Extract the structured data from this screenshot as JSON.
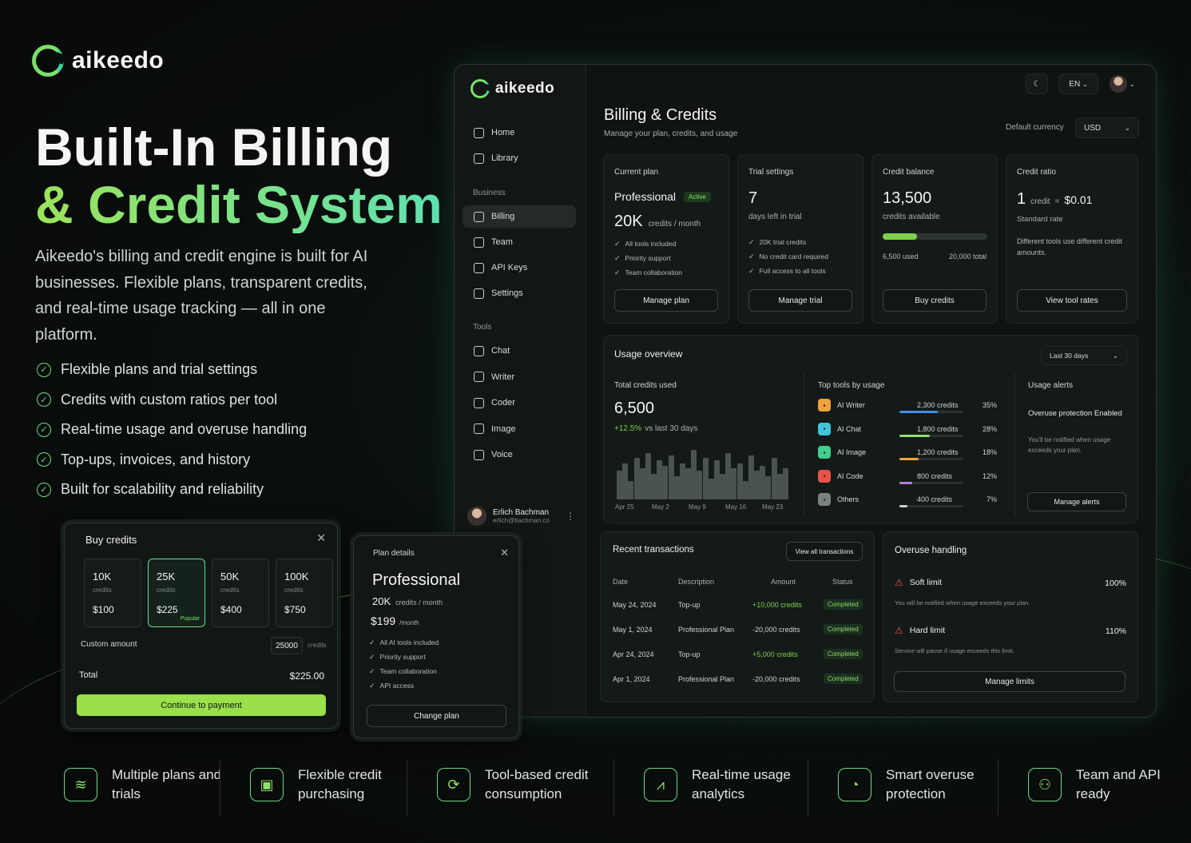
{
  "brand": {
    "name": "aikeedo"
  },
  "hero": {
    "title_line1": "Built-In Billing",
    "title_line2": "& Credit System",
    "description": "Aikeedo's billing and credit engine is built for AI businesses. Flexible plans, transparent credits, and real-time usage tracking — all in one platform.",
    "features": [
      "Flexible plans and trial settings",
      "Credits with custom ratios per tool",
      "Real-time usage and overuse handling",
      "Top-ups, invoices, and history",
      "Built for scalability and reliability"
    ]
  },
  "sidebar": {
    "nav_top": [
      {
        "label": "Home",
        "icon": "home-icon"
      },
      {
        "label": "Library",
        "icon": "library-icon"
      }
    ],
    "section_business": "Business",
    "nav_business": [
      {
        "label": "Billing",
        "icon": "billing-icon",
        "active": true
      },
      {
        "label": "Team",
        "icon": "team-icon"
      },
      {
        "label": "API Keys",
        "icon": "key-icon"
      },
      {
        "label": "Settings",
        "icon": "gear-icon"
      }
    ],
    "section_tools": "Tools",
    "nav_tools": [
      {
        "label": "Chat",
        "icon": "chat-icon"
      },
      {
        "label": "Writer",
        "icon": "writer-icon"
      },
      {
        "label": "Coder",
        "icon": "code-icon"
      },
      {
        "label": "Image",
        "icon": "image-icon"
      },
      {
        "label": "Voice",
        "icon": "voice-icon"
      }
    ],
    "user": {
      "name": "Erlich Bachman",
      "email": "erlich@bachman.co"
    }
  },
  "topbar": {
    "theme_icon": "moon-icon",
    "language": "EN"
  },
  "page": {
    "title": "Billing & Credits",
    "subtitle": "Manage your plan, credits, and usage",
    "currency_label": "Default currency",
    "currency_value": "USD"
  },
  "cards": {
    "current_plan": {
      "label": "Current plan",
      "plan": "Professional",
      "badge": "Active",
      "credits": "20K",
      "credits_unit": "credits / month",
      "features": [
        "All tools included",
        "Priority support",
        "Team collaboration"
      ],
      "button": "Manage plan"
    },
    "trial": {
      "label": "Trial settings",
      "value": "7",
      "unit": "days left in trial",
      "features": [
        "20K trial credits",
        "No credit card required",
        "Full access to all tools"
      ],
      "button": "Manage trial"
    },
    "balance": {
      "label": "Credit balance",
      "value": "13,500",
      "unit": "credits available",
      "used": "6,500 used",
      "total": "20,000 total",
      "used_fraction": 0.325,
      "button": "Buy credits"
    },
    "ratio": {
      "label": "Credit ratio",
      "num": "1",
      "credit_word": "credit",
      "eq": "=",
      "price": "$0.01",
      "rate": "Standard rate",
      "note": "Different tools use different credit amounts.",
      "button": "View tool rates"
    }
  },
  "usage": {
    "title": "Usage overview",
    "range": "Last 30 days",
    "total_label": "Total credits used",
    "total_value": "6,500",
    "change": "+12.5%",
    "change_suffix": "vs last 30 days",
    "x_labels": [
      "Apr 25",
      "May 2",
      "May 9",
      "May 16",
      "May 23"
    ],
    "bars": [
      0.55,
      0.7,
      0.35,
      0.8,
      0.6,
      0.9,
      0.5,
      0.75,
      0.65,
      0.85,
      0.45,
      0.7,
      0.6,
      0.95,
      0.55,
      0.8,
      0.4,
      0.75,
      0.5,
      0.9,
      0.6,
      0.7,
      0.35,
      0.85,
      0.55,
      0.65,
      0.45,
      0.8,
      0.5,
      0.6
    ],
    "top_tools_label": "Top tools by usage",
    "tools": [
      {
        "name": "AI Writer",
        "credits": "2,300 credits",
        "pct": "35%",
        "fraction": 0.35,
        "color": "#f0a23a",
        "icon": "writer-tool-icon"
      },
      {
        "name": "AI Chat",
        "credits": "1,800 credits",
        "pct": "28%",
        "fraction": 0.28,
        "color": "#3ec6d8",
        "icon": "chat-tool-icon"
      },
      {
        "name": "AI Image",
        "credits": "1,200 credits",
        "pct": "18%",
        "fraction": 0.18,
        "color": "#3fcf8e",
        "icon": "image-tool-icon"
      },
      {
        "name": "AI Code",
        "credits": "800 credits",
        "pct": "12%",
        "fraction": 0.12,
        "color": "#e8544a",
        "icon": "code-tool-icon"
      },
      {
        "name": "Others",
        "credits": "400 credits",
        "pct": "7%",
        "fraction": 0.07,
        "color": "#7b8380",
        "icon": "others-tool-icon"
      }
    ],
    "tool_bar_colors": [
      "#3f8fe6",
      "#8fe06a",
      "#f0a23a",
      "#b57ce8",
      "#c9cfcc"
    ],
    "alerts_label": "Usage alerts",
    "alert_title": "Overuse protection Enabled",
    "alert_text": "You'll be notified when usage exceeds your plan.",
    "alert_button": "Manage alerts"
  },
  "transactions": {
    "title": "Recent transactions",
    "view_all": "View all transactions",
    "headers": [
      "Date",
      "Description",
      "Amount",
      "Status"
    ],
    "rows": [
      {
        "date": "May 24, 2024",
        "desc": "Top-up",
        "amount": "+10,000 credits",
        "positive": true,
        "status": "Completed"
      },
      {
        "date": "May 1, 2024",
        "desc": "Professional Plan",
        "amount": "-20,000 credits",
        "positive": false,
        "status": "Completed"
      },
      {
        "date": "Apr 24, 2024",
        "desc": "Top-up",
        "amount": "+5,000 credits",
        "positive": true,
        "status": "Completed"
      },
      {
        "date": "Apr 1, 2024",
        "desc": "Professional Plan",
        "amount": "-20,000 credits",
        "positive": false,
        "status": "Completed"
      }
    ]
  },
  "overuse": {
    "title": "Overuse handling",
    "soft_label": "Soft limit",
    "soft_value": "100%",
    "soft_text": "You will be notified when usage exceeds your plan.",
    "hard_label": "Hard limit",
    "hard_value": "110%",
    "hard_text": "Service will pause if usage exceeds this limit.",
    "button": "Manage limits"
  },
  "buy_popup": {
    "title": "Buy credits",
    "packages": [
      {
        "amount": "10K",
        "unit": "credits",
        "price": "$100"
      },
      {
        "amount": "25K",
        "unit": "credits",
        "price": "$225",
        "tag": "Popular",
        "selected": true
      },
      {
        "amount": "50K",
        "unit": "credits",
        "price": "$400"
      },
      {
        "amount": "100K",
        "unit": "credits",
        "price": "$750"
      }
    ],
    "custom_label": "Custom amount",
    "custom_value": "25000",
    "custom_unit": "credits",
    "total_label": "Total",
    "total_value": "$225.00",
    "button": "Continue to payment"
  },
  "plan_popup": {
    "title": "Plan details",
    "plan": "Professional",
    "credits": "20K",
    "credits_unit": "credits / month",
    "price": "$199",
    "price_unit": "/month",
    "features": [
      "All AI tools included",
      "Priority support",
      "Team collaboration",
      "API access"
    ],
    "button": "Change plan"
  },
  "footer": [
    {
      "text": "Multiple plans and trials",
      "icon": "layers-icon"
    },
    {
      "text": "Flexible credit purchasing",
      "icon": "bag-icon"
    },
    {
      "text": "Tool-based credit consumption",
      "icon": "refresh-icon"
    },
    {
      "text": "Real-time usage analytics",
      "icon": "chart-icon"
    },
    {
      "text": "Smart overuse protection",
      "icon": "gauge-icon"
    },
    {
      "text": "Team and API ready",
      "icon": "users-icon"
    }
  ]
}
